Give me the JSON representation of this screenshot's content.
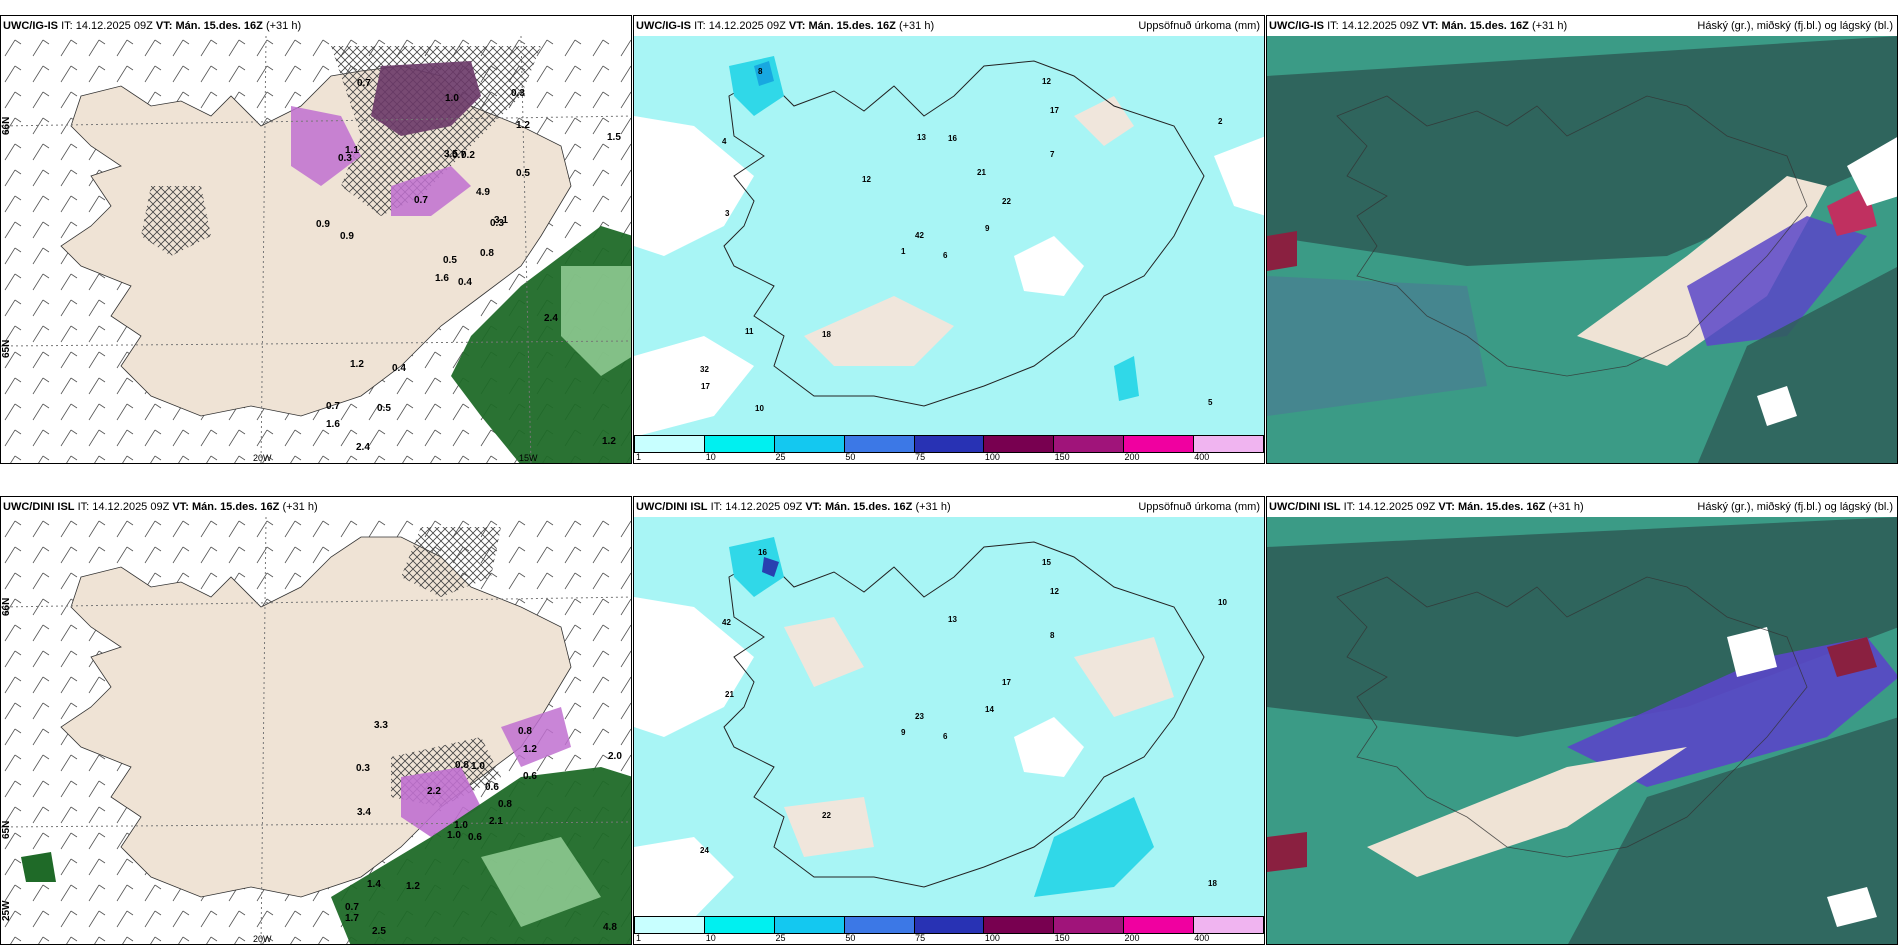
{
  "panels": [
    {
      "model": "UWC/IG-IS",
      "it_label": "IT:",
      "it": "14.12.2025 09Z",
      "vt_label": "VT:",
      "vt": "Mán. 15.des. 16Z",
      "lead": "(+31 h)",
      "title": ""
    },
    {
      "model": "UWC/IG-IS",
      "it_label": "IT:",
      "it": "14.12.2025 09Z",
      "vt_label": "VT:",
      "vt": "Mán. 15.des. 16Z",
      "lead": "(+31 h)",
      "title": "Uppsöfnuð úrkoma (mm)"
    },
    {
      "model": "UWC/IG-IS",
      "it_label": "IT:",
      "it": "14.12.2025 09Z",
      "vt_label": "VT:",
      "vt": "Mán. 15.des. 16Z",
      "lead": "(+31 h)",
      "title": "Háský (gr.), miðský (fj.bl.) og lágský (bl.)"
    },
    {
      "model": "UWC/DINI ISL",
      "it_label": "IT:",
      "it": "14.12.2025 09Z",
      "vt_label": "VT:",
      "vt": "Mán. 15.des. 16Z",
      "lead": "(+31 h)",
      "title": ""
    },
    {
      "model": "UWC/DINI ISL",
      "it_label": "IT:",
      "it": "14.12.2025 09Z",
      "vt_label": "VT:",
      "vt": "Mán. 15.des. 16Z",
      "lead": "(+31 h)",
      "title": "Uppsöfnuð úrkoma (mm)"
    },
    {
      "model": "UWC/DINI ISL",
      "it_label": "IT:",
      "it": "14.12.2025 09Z",
      "vt_label": "VT:",
      "vt": "Mán. 15.des. 16Z",
      "lead": "(+31 h)",
      "title": "Háský (gr.), miðský (fj.bl.) og lágský (bl.)"
    }
  ],
  "axes": {
    "lat66": "66N",
    "lat65": "65N",
    "lon20": "20W",
    "lon15": "15W",
    "lon25": "25W"
  },
  "precip_legend": {
    "ticks": [
      "1",
      "10",
      "25",
      "50",
      "75",
      "100",
      "150",
      "200",
      "400"
    ],
    "colors": [
      "#c8ffff",
      "#00f0f0",
      "#14c8f0",
      "#3c78e6",
      "#2832b4",
      "#780050",
      "#a0147a",
      "#f000a0",
      "#f0b4f0"
    ]
  },
  "wind_panel_top": {
    "labels": [
      "0.4",
      "0.3",
      "0.5",
      "0.7",
      "0.3",
      "0.4",
      "0.3",
      "0.2",
      "1.2",
      "0.8",
      "0.7",
      "1.2",
      "0.9",
      "1.5",
      "1.6",
      "0.5",
      "2.4",
      "3.5",
      "4.9",
      "1.2",
      "0.7",
      "1.6",
      "0.5",
      "0.7",
      "3.1",
      "2.4",
      "1.1",
      "1.0",
      "0.9"
    ]
  },
  "wind_panel_bottom": {
    "labels": [
      "0.6",
      "0.3",
      "1.0",
      "0.7",
      "0.8",
      "1.2",
      "0.8",
      "1.0",
      "1.2",
      "2.1",
      "3.3",
      "4.8",
      "3.4",
      "2.0",
      "1.0",
      "0.6",
      "2.5",
      "0.8",
      "0.6",
      "1.4",
      "2.2",
      "1.7"
    ]
  },
  "precip_panel_top": {
    "labels": [
      "6",
      "4",
      "42",
      "32",
      "22",
      "18",
      "12",
      "16",
      "17",
      "9",
      "8",
      "5",
      "3",
      "2",
      "1",
      "7",
      "10",
      "13",
      "21",
      "11",
      "12",
      "17"
    ]
  },
  "precip_panel_bottom": {
    "labels": [
      "6",
      "42",
      "23",
      "24",
      "17",
      "22",
      "15",
      "13",
      "12",
      "14",
      "16",
      "18",
      "21",
      "10",
      "9",
      "8"
    ]
  }
}
